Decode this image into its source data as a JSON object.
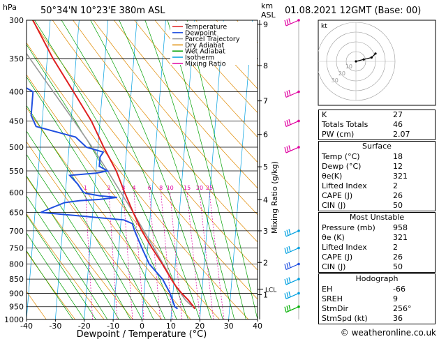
{
  "header": {
    "location": "50°34'N  10°23'E  380m  ASL",
    "datetime": "01.08.2021  12GMT  (Base: 00)",
    "left_unit": "hPa",
    "km_unit": "km",
    "asl_unit": "ASL"
  },
  "footer": {
    "credit": "© weatheronline.co.uk"
  },
  "legend": [
    {
      "label": "Temperature",
      "color": "#e02020"
    },
    {
      "label": "Dewpoint",
      "color": "#1f4fe0"
    },
    {
      "label": "Parcel Trajectory",
      "color": "#999999"
    },
    {
      "label": "Dry Adiabat",
      "color": "#e08a00"
    },
    {
      "label": "Wet Adiabat",
      "color": "#00a000"
    },
    {
      "label": "Isotherm",
      "color": "#00a0e0"
    },
    {
      "label": "Mixing Ratio",
      "color": "#e000a0"
    }
  ],
  "hodograph": {
    "unit": "kt",
    "ring_labels": [
      "10",
      "20",
      "30"
    ]
  },
  "indices": {
    "top": [
      {
        "label": "K",
        "value": "27"
      },
      {
        "label": "Totals Totals",
        "value": "46"
      },
      {
        "label": "PW (cm)",
        "value": "2.07"
      }
    ],
    "surface": {
      "title": "Surface",
      "rows": [
        {
          "label": "Temp (°C)",
          "value": "18"
        },
        {
          "label": "Dewp (°C)",
          "value": "12"
        },
        {
          "label": "θe(K)",
          "value": "321"
        },
        {
          "label": "Lifted Index",
          "value": "2"
        },
        {
          "label": "CAPE (J)",
          "value": "26"
        },
        {
          "label": "CIN (J)",
          "value": "50"
        }
      ]
    },
    "most_unstable": {
      "title": "Most Unstable",
      "rows": [
        {
          "label": "Pressure (mb)",
          "value": "958"
        },
        {
          "label": "θe (K)",
          "value": "321"
        },
        {
          "label": "Lifted Index",
          "value": "2"
        },
        {
          "label": "CAPE (J)",
          "value": "26"
        },
        {
          "label": "CIN (J)",
          "value": "50"
        }
      ]
    },
    "hodograph": {
      "title": "Hodograph",
      "rows": [
        {
          "label": "EH",
          "value": "-66"
        },
        {
          "label": "SREH",
          "value": "9"
        },
        {
          "label": "StmDir",
          "value": "256°"
        },
        {
          "label": "StmSpd (kt)",
          "value": "36"
        }
      ]
    }
  },
  "chart_data": {
    "type": "line",
    "xlabel": "Dewpoint / Temperature (°C)",
    "ylabel_right": "Mixing Ratio (g/kg)",
    "xlim": [
      -40,
      40
    ],
    "ylim_pressure": [
      1000,
      300
    ],
    "x_ticks": [
      -40,
      -30,
      -20,
      -10,
      0,
      10,
      20,
      30,
      40
    ],
    "pressure_ticks": [
      300,
      350,
      400,
      450,
      500,
      550,
      600,
      650,
      700,
      750,
      800,
      850,
      900,
      950,
      1000
    ],
    "km_ticks": [
      {
        "label": "9",
        "p": 305
      },
      {
        "label": "8",
        "p": 360
      },
      {
        "label": "7",
        "p": 415
      },
      {
        "label": "6",
        "p": 475
      },
      {
        "label": "5",
        "p": 541
      },
      {
        "label": "4",
        "p": 618
      },
      {
        "label": "3",
        "p": 700
      },
      {
        "label": "2",
        "p": 795
      },
      {
        "label": "1",
        "p": 905
      }
    ],
    "lcl": {
      "label": "LCL",
      "p": 885
    },
    "mixing_ratio_labels": [
      "1",
      "2",
      "3",
      "4",
      "6",
      "8",
      "10",
      "15",
      "20",
      "25"
    ],
    "mixing_ratio_values": [
      1,
      2,
      3,
      4,
      6,
      8,
      10,
      15,
      20,
      25
    ],
    "series": [
      {
        "name": "Temperature",
        "points": [
          [
            958,
            18
          ],
          [
            950,
            17.5
          ],
          [
            925,
            15.5
          ],
          [
            900,
            13
          ],
          [
            875,
            10.8
          ],
          [
            850,
            9
          ],
          [
            800,
            5.5
          ],
          [
            750,
            1.5
          ],
          [
            700,
            -2.5
          ],
          [
            650,
            -6
          ],
          [
            600,
            -9.5
          ],
          [
            550,
            -13
          ],
          [
            500,
            -18
          ],
          [
            450,
            -23
          ],
          [
            400,
            -30
          ],
          [
            350,
            -38
          ],
          [
            300,
            -46
          ]
        ]
      },
      {
        "name": "Dewpoint",
        "points": [
          [
            958,
            12
          ],
          [
            950,
            11
          ],
          [
            925,
            10
          ],
          [
            900,
            9
          ],
          [
            850,
            6
          ],
          [
            800,
            1
          ],
          [
            750,
            -2
          ],
          [
            700,
            -5
          ],
          [
            680,
            -6
          ],
          [
            670,
            -9
          ],
          [
            650,
            -38
          ],
          [
            640,
            -35
          ],
          [
            625,
            -30
          ],
          [
            620,
            -25
          ],
          [
            617,
            -18
          ],
          [
            612,
            -12
          ],
          [
            608,
            -18
          ],
          [
            602,
            -23
          ],
          [
            598,
            -24
          ],
          [
            580,
            -26
          ],
          [
            560,
            -29
          ],
          [
            555,
            -20
          ],
          [
            550,
            -16
          ],
          [
            540,
            -19
          ],
          [
            520,
            -19
          ],
          [
            510,
            -18
          ],
          [
            500,
            -24
          ],
          [
            480,
            -28
          ],
          [
            460,
            -42
          ],
          [
            440,
            -44
          ],
          [
            400,
            -44
          ],
          [
            390,
            -48
          ],
          [
            370,
            -55
          ],
          [
            330,
            -60
          ],
          [
            310,
            -58
          ],
          [
            300,
            -54
          ]
        ]
      },
      {
        "name": "Parcel Trajectory",
        "points": [
          [
            958,
            18
          ],
          [
            925,
            14.5
          ],
          [
            885,
            11.5
          ],
          [
            850,
            9.2
          ],
          [
            800,
            5.8
          ],
          [
            750,
            2.2
          ],
          [
            700,
            -1.8
          ],
          [
            650,
            -6
          ],
          [
            600,
            -10.8
          ],
          [
            550,
            -16
          ],
          [
            500,
            -22
          ],
          [
            450,
            -29
          ],
          [
            400,
            -37
          ],
          [
            350,
            -46
          ],
          [
            300,
            -56
          ]
        ]
      }
    ],
    "wind_barbs": [
      {
        "p": 300,
        "color": "#e000a0"
      },
      {
        "p": 400,
        "color": "#e000a0"
      },
      {
        "p": 450,
        "color": "#e000a0"
      },
      {
        "p": 500,
        "color": "#e000a0"
      },
      {
        "p": 700,
        "color": "#00a0e0"
      },
      {
        "p": 750,
        "color": "#00a0e0"
      },
      {
        "p": 800,
        "color": "#1f4fe0"
      },
      {
        "p": 850,
        "color": "#00a0e0"
      },
      {
        "p": 900,
        "color": "#00a0e0"
      },
      {
        "p": 950,
        "color": "#00b000"
      }
    ],
    "hodograph_points": [
      [
        0,
        0
      ],
      [
        4,
        1
      ],
      [
        8,
        2
      ],
      [
        10,
        4
      ]
    ]
  }
}
